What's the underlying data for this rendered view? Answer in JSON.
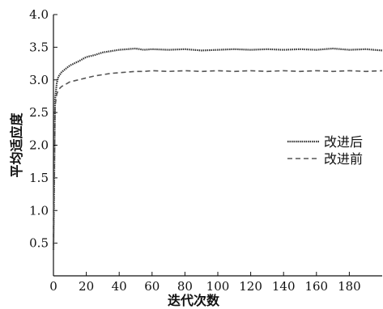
{
  "chart_data": {
    "type": "line",
    "title": "",
    "xlabel": "迭代次数",
    "ylabel": "平均适应度",
    "xlim": [
      0,
      200
    ],
    "ylim": [
      0,
      4.0
    ],
    "x_ticks": [
      0,
      20,
      40,
      60,
      80,
      100,
      120,
      140,
      160,
      180
    ],
    "x_tick_labels": [
      "0",
      "20",
      "40",
      "60",
      "80",
      "100",
      "120",
      "140",
      "160",
      "180"
    ],
    "y_ticks": [
      0.5,
      1.0,
      1.5,
      2.0,
      2.5,
      3.0,
      3.5,
      4.0
    ],
    "y_tick_labels": [
      "0.5",
      "1.0",
      "1.5",
      "2.0",
      "2.5",
      "3.0",
      "3.5",
      "4.0"
    ],
    "legend_position": "center-right",
    "grid": false,
    "series": [
      {
        "name": "改进后",
        "style": "dotted-thick",
        "color": "#333333",
        "x": [
          0,
          1,
          2,
          3,
          5,
          8,
          10,
          15,
          20,
          25,
          30,
          35,
          40,
          45,
          50,
          55,
          60,
          70,
          80,
          90,
          100,
          110,
          120,
          130,
          140,
          150,
          160,
          170,
          180,
          190,
          200
        ],
        "y": [
          0.4,
          2.7,
          2.95,
          3.05,
          3.12,
          3.18,
          3.22,
          3.28,
          3.35,
          3.38,
          3.42,
          3.44,
          3.46,
          3.47,
          3.48,
          3.46,
          3.47,
          3.46,
          3.47,
          3.45,
          3.46,
          3.47,
          3.46,
          3.47,
          3.46,
          3.47,
          3.46,
          3.48,
          3.46,
          3.47,
          3.45
        ]
      },
      {
        "name": "改进前",
        "style": "dashed",
        "color": "#555555",
        "x": [
          0,
          1,
          2,
          3,
          5,
          8,
          10,
          15,
          20,
          25,
          30,
          35,
          40,
          45,
          50,
          55,
          60,
          70,
          80,
          90,
          100,
          110,
          120,
          130,
          140,
          150,
          160,
          170,
          180,
          190,
          200
        ],
        "y": [
          0.4,
          2.6,
          2.78,
          2.85,
          2.9,
          2.94,
          2.97,
          3.0,
          3.03,
          3.06,
          3.08,
          3.1,
          3.11,
          3.12,
          3.13,
          3.13,
          3.14,
          3.13,
          3.14,
          3.13,
          3.14,
          3.13,
          3.14,
          3.13,
          3.14,
          3.13,
          3.14,
          3.13,
          3.14,
          3.13,
          3.14
        ]
      }
    ]
  }
}
